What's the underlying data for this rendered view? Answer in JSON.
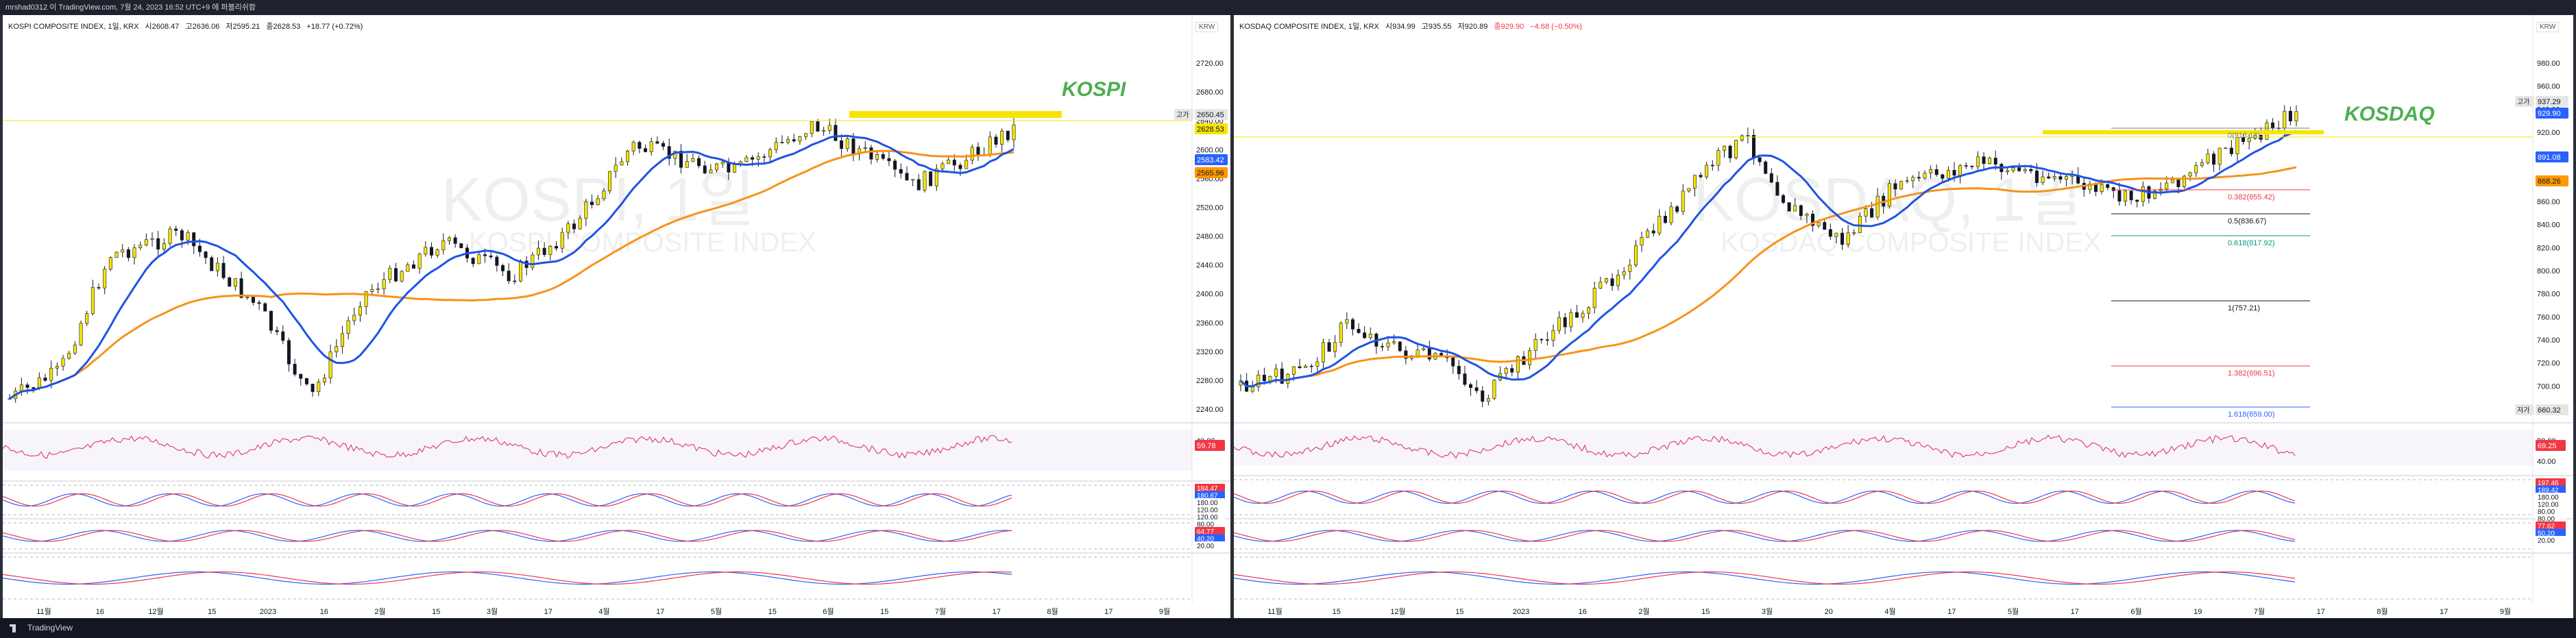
{
  "header": {
    "title_line": "mrshad0312 이 TradingView.com, 7월 24, 2023 16:52 UTC+9 에 퍼블리쉬함"
  },
  "left": {
    "legend": [
      "KOSPI COMPOSITE INDEX, 1일, KRX",
      "시2608.47",
      "고2636.06",
      "저2595.21",
      "종2628.53",
      "+18.77 (+0.72%)"
    ],
    "currency": "KRW",
    "annotation": "KOSPI",
    "watermark": "KOSPI, 1일",
    "watermark_sub": "KOSPI COMPOSITE INDEX",
    "price_axis": [
      "2720.00",
      "2680.00",
      "2640.00",
      "2600.00",
      "2560.00",
      "2520.00",
      "2480.00",
      "2440.00",
      "2400.00",
      "2360.00",
      "2320.00",
      "2280.00",
      "2240.00"
    ],
    "price_tags": [
      {
        "text": "2650.45",
        "label": "고가",
        "bg": "#e6e6e6",
        "fg": "#131722"
      },
      {
        "text": "2628.53",
        "bg": "#f5e400",
        "fg": "#131722"
      },
      {
        "text": "2583.42",
        "bg": "#2962ff",
        "fg": "#ffffff"
      },
      {
        "text": "2565.96",
        "bg": "#ff9800",
        "fg": "#131722"
      }
    ],
    "rsi_axis": [
      "40.00"
    ],
    "rsi_tag": {
      "text": "59.78",
      "bg": "#f23645",
      "fg": "#ffffff"
    },
    "osc_tags": [
      {
        "text": "184.47",
        "bg": "#f23645",
        "fg": "#ffffff"
      },
      {
        "text": "180.67",
        "bg": "#2962ff",
        "fg": "#ffffff"
      },
      {
        "text": "180.00",
        "bg": "#ffffff",
        "fg": "#131722"
      },
      {
        "text": "120.00",
        "bg": "#ffffff",
        "fg": "#131722"
      },
      {
        "text": "120.00",
        "bg": "#ffffff",
        "fg": "#131722"
      },
      {
        "text": "80.00",
        "bg": "#ffffff",
        "fg": "#131722"
      },
      {
        "text": "64.77",
        "bg": "#f23645",
        "fg": "#ffffff"
      },
      {
        "text": "40.20",
        "bg": "#2962ff",
        "fg": "#ffffff"
      },
      {
        "text": "20.00",
        "bg": "#ffffff",
        "fg": "#131722"
      }
    ],
    "time_axis": [
      "11월",
      "16",
      "12월",
      "15",
      "2023",
      "16",
      "2월",
      "15",
      "3월",
      "17",
      "4월",
      "17",
      "5월",
      "15",
      "6월",
      "15",
      "7월",
      "17",
      "8월",
      "17",
      "9월"
    ]
  },
  "right": {
    "legend": [
      "KOSDAQ COMPOSITE INDEX, 1일, KRX",
      "시934.99",
      "고935.55",
      "저920.89",
      "종929.90",
      "−4.68 (−0.50%)"
    ],
    "currency": "KRW",
    "annotation": "KOSDAQ",
    "watermark": "KOSDAQ, 1일",
    "watermark_sub": "KOSDAQ COMPOSITE INDEX",
    "price_axis": [
      "980.00",
      "960.00",
      "940.00",
      "920.00",
      "900.00",
      "880.00",
      "860.00",
      "840.00",
      "820.00",
      "800.00",
      "780.00",
      "760.00",
      "740.00",
      "720.00",
      "700.00",
      "680.00"
    ],
    "price_tags": [
      {
        "text": "937.29",
        "label": "고가",
        "bg": "#e6e6e6",
        "fg": "#131722"
      },
      {
        "text": "929.90",
        "bg": "#2962ff",
        "fg": "#ffffff"
      },
      {
        "text": "891.08",
        "bg": "#2962ff",
        "fg": "#ffffff"
      },
      {
        "text": "868.26",
        "bg": "#ff9800",
        "fg": "#131722"
      },
      {
        "text": "660.32",
        "label": "저가",
        "bg": "#e6e6e6",
        "fg": "#131722"
      }
    ],
    "fib_labels": [
      {
        "text": "0(916.13)",
        "color": "#787b86"
      },
      {
        "text": "0.382(855.42)",
        "color": "#f23645"
      },
      {
        "text": "0.5(836.67)",
        "color": "#131722"
      },
      {
        "text": "0.618(817.92)",
        "color": "#089981"
      },
      {
        "text": "1(757.21)",
        "color": "#131722"
      },
      {
        "text": "1.382(696.51)",
        "color": "#f23645"
      },
      {
        "text": "1.618(659.00)",
        "color": "#2962ff"
      }
    ],
    "rsi_axis": [
      "80.00",
      "40.00"
    ],
    "rsi_tag": {
      "text": "69.25",
      "bg": "#f23645",
      "fg": "#ffffff"
    },
    "osc_tags": [
      {
        "text": "197.46",
        "bg": "#f23645",
        "fg": "#ffffff"
      },
      {
        "text": "189.42",
        "bg": "#2962ff",
        "fg": "#ffffff"
      },
      {
        "text": "180.00",
        "bg": "#ffffff",
        "fg": "#131722"
      },
      {
        "text": "120.00",
        "bg": "#ffffff",
        "fg": "#131722"
      },
      {
        "text": "80.00",
        "bg": "#ffffff",
        "fg": "#131722"
      },
      {
        "text": "80.00",
        "bg": "#ffffff",
        "fg": "#131722"
      },
      {
        "text": "77.62",
        "bg": "#f23645",
        "fg": "#ffffff"
      },
      {
        "text": "50.20",
        "bg": "#2962ff",
        "fg": "#ffffff"
      },
      {
        "text": "20.00",
        "bg": "#ffffff",
        "fg": "#131722"
      }
    ],
    "time_axis": [
      "11월",
      "15",
      "12월",
      "15",
      "2023",
      "16",
      "2월",
      "15",
      "3월",
      "20",
      "4월",
      "17",
      "5월",
      "17",
      "6월",
      "19",
      "7월",
      "17",
      "8월",
      "17",
      "9월"
    ]
  },
  "footer": {
    "brand": "TradingView"
  },
  "colors": {
    "ma_fast": "#1e53e5",
    "ma_slow": "#f7931a",
    "resistance": "#f5e400",
    "rsi_line": "#e0457b",
    "up": "#f5e400",
    "down": "#131722"
  }
}
